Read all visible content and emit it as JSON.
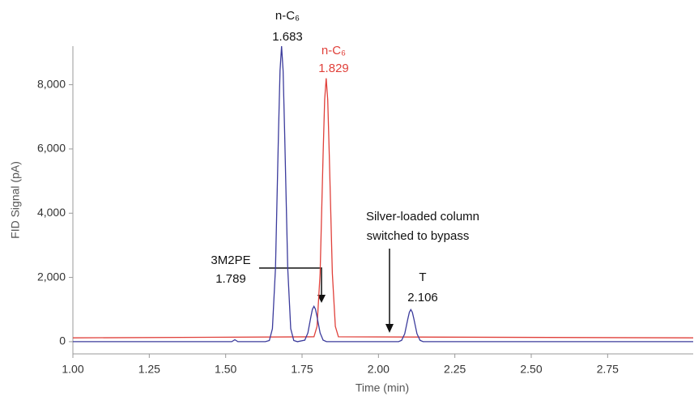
{
  "chart_data": {
    "type": "line",
    "xlabel": "Time (min)",
    "ylabel": "FID Signal (pA)",
    "xlim": [
      1.0,
      3.03
    ],
    "ylim": [
      -380,
      9200
    ],
    "xticks": [
      {
        "value": 1.0,
        "label": "1.00"
      },
      {
        "value": 1.25,
        "label": "1.25"
      },
      {
        "value": 1.5,
        "label": "1.50"
      },
      {
        "value": 1.75,
        "label": "1.75"
      },
      {
        "value": 2.0,
        "label": "2.00"
      },
      {
        "value": 2.25,
        "label": "2.25"
      },
      {
        "value": 2.5,
        "label": "2.50"
      },
      {
        "value": 2.75,
        "label": "2.75"
      }
    ],
    "yticks": [
      0,
      {
        "value": 2000,
        "label": "2,000"
      },
      {
        "value": 4000,
        "label": "4,000"
      },
      {
        "value": 6000,
        "label": "6,000"
      },
      {
        "value": 8000,
        "label": "8,000"
      }
    ],
    "grid": false,
    "series": [
      {
        "color": "#3b3b9c",
        "x": [
          1.0,
          1.52,
          1.53,
          1.54,
          1.63,
          1.643,
          1.653,
          1.663,
          1.673,
          1.678,
          1.683,
          1.688,
          1.693,
          1.703,
          1.713,
          1.723,
          1.735,
          1.759,
          1.769,
          1.779,
          1.784,
          1.789,
          1.794,
          1.799,
          1.809,
          1.819,
          1.83,
          2.066,
          2.076,
          2.086,
          2.096,
          2.101,
          2.106,
          2.111,
          2.116,
          2.126,
          2.136,
          2.146,
          3.03
        ],
        "values": [
          0,
          0,
          60,
          0,
          0,
          36,
          404,
          2294,
          6505,
          8436,
          9200,
          8436,
          6505,
          2294,
          404,
          36,
          0,
          48,
          274,
          778,
          1009,
          1100,
          1009,
          778,
          274,
          48,
          0,
          0,
          44,
          249,
          707,
          917,
          1000,
          917,
          707,
          249,
          44,
          0,
          0
        ]
      },
      {
        "color": "#e0403a",
        "x": [
          1.0,
          1.789,
          1.799,
          1.809,
          1.819,
          1.824,
          1.829,
          1.834,
          1.839,
          1.849,
          1.859,
          1.869,
          3.03
        ],
        "values": [
          120,
          151,
          476,
          2132,
          5832,
          7529,
          8200,
          7529,
          5832,
          2132,
          476,
          151,
          120
        ]
      }
    ],
    "annotations": [
      "n-C₆",
      "1.683",
      "n-C₆",
      "1.829",
      "3M2PE",
      "1.789",
      "T",
      "2.106",
      "Silver-loaded column",
      "switched to bypass"
    ]
  }
}
